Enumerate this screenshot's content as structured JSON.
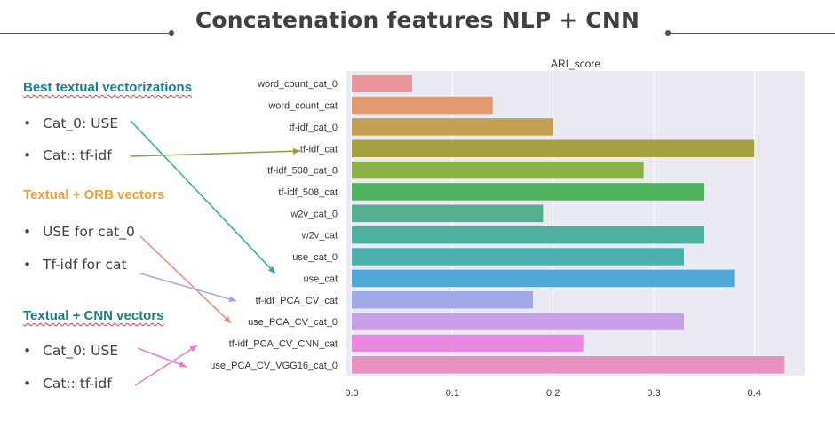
{
  "slide": {
    "title": "Concatenation features NLP + CNN"
  },
  "panel": {
    "sections": [
      {
        "heading": "Best textual vectorizations",
        "color": "#1a7d8a",
        "bullets": [
          "Cat_0: USE",
          "Cat:: tf-idf"
        ]
      },
      {
        "heading": "Textual + ORB vectors",
        "color": "#f0a030",
        "bullets": [
          "USE for cat_0",
          "Tf-idf for cat"
        ]
      },
      {
        "heading": "Textual + CNN vectors",
        "color": "#1a7d8a",
        "bullets": [
          "Cat_0: USE",
          "Cat:: tf-idf"
        ]
      }
    ]
  },
  "colors": {
    "accent_rule": "#2e5e6a",
    "arrow_teal": "#2aaab0",
    "arrow_olive": "#9a9a3a",
    "arrow_salmon": "#f08a80",
    "arrow_lavender": "#a0a8e8",
    "arrow_pink": "#e87ad8",
    "plot_bg": "#eaeaf2"
  },
  "chart_data": {
    "type": "bar",
    "orientation": "horizontal",
    "title": "ARI_score",
    "xlabel": "",
    "ylabel": "",
    "xlim": [
      0,
      0.45
    ],
    "xticks": [
      0.0,
      0.1,
      0.2,
      0.3,
      0.4
    ],
    "xtick_labels": [
      "0.0",
      "0.1",
      "0.2",
      "0.3",
      "0.4"
    ],
    "grid": true,
    "categories": [
      "word_count_cat_0",
      "word_count_cat",
      "tf-idf_cat_0",
      "tf-idf_cat",
      "tf-idf_508_cat_0",
      "tf-idf_508_cat",
      "w2v_cat_0",
      "w2v_cat",
      "use_cat_0",
      "use_cat",
      "tf-idf_PCA_CV_cat",
      "use_PCA_CV_cat_0",
      "tf-idf_PCA_CV_CNN_cat",
      "use_PCA_CV_VGG16_cat_0"
    ],
    "values": [
      0.06,
      0.14,
      0.2,
      0.4,
      0.29,
      0.35,
      0.19,
      0.35,
      0.33,
      0.38,
      0.18,
      0.33,
      0.23,
      0.43
    ],
    "bar_colors": [
      "#e8949a",
      "#e49a6e",
      "#c6a052",
      "#a8a040",
      "#8eb048",
      "#4fb060",
      "#52b090",
      "#4cb0a0",
      "#4ab0b0",
      "#50a8d8",
      "#a0a8e8",
      "#c8a0e8",
      "#e888e0",
      "#e890c0"
    ]
  }
}
